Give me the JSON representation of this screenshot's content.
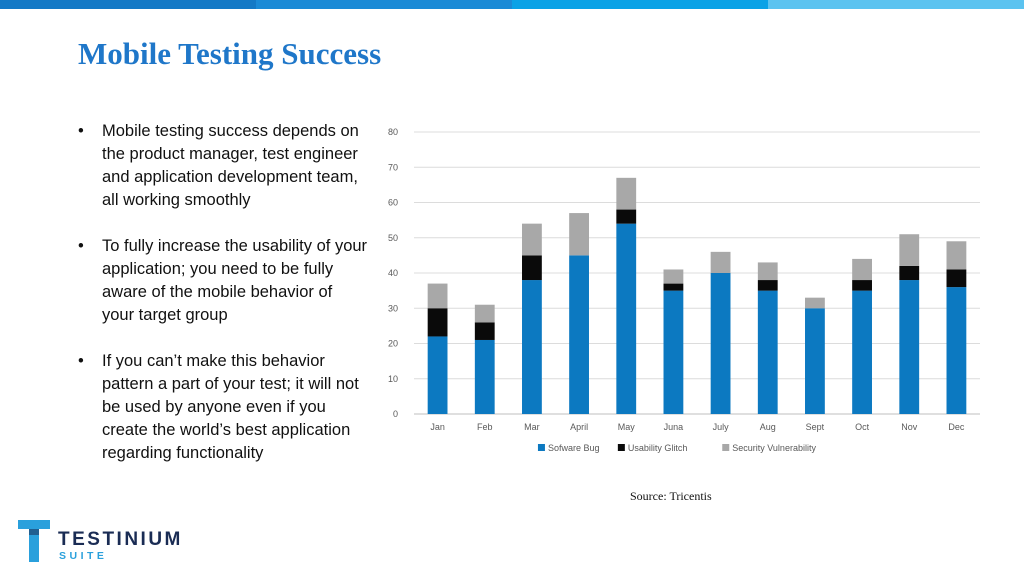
{
  "slide": {
    "title": "Mobile Testing Success",
    "bullets": [
      "Mobile testing success depends on the product manager, test engineer and application development team, all working smoothly",
      "To fully increase the usability of your application; you need to be fully aware of the mobile behavior of your target group",
      "If you can’t make this behavior pattern a part of your test; it will not be used by anyone even if you create the world’s best application regarding functionality"
    ],
    "bullet_glyph": "•",
    "source": "Source: Tricentis",
    "top_bar_colors": [
      "#1479c6",
      "#1b8ad6",
      "#0aa2e6",
      "#5bc3f0"
    ],
    "logo": {
      "word": "TESTINIUM",
      "sub": "SUITE",
      "icon": "testinium-t-logo-icon",
      "colors": {
        "primary": "#1a2c54",
        "accent": "#2aa0dc"
      }
    }
  },
  "chart_data": {
    "type": "bar",
    "stacked": true,
    "categories": [
      "Jan",
      "Feb",
      "Mar",
      "April",
      "May",
      "Juna",
      "July",
      "Aug",
      "Sept",
      "Oct",
      "Nov",
      "Dec"
    ],
    "series": [
      {
        "name": "Sofware Bug",
        "color": "#0c79c1",
        "values": [
          22,
          21,
          38,
          45,
          54,
          35,
          40,
          35,
          30,
          35,
          38,
          36
        ]
      },
      {
        "name": "Usability Glitch",
        "color": "#0a0a0a",
        "values": [
          8,
          5,
          7,
          0,
          4,
          2,
          0,
          3,
          0,
          3,
          4,
          5
        ]
      },
      {
        "name": "Security Vulnerability",
        "color": "#a8a8a8",
        "values": [
          7,
          5,
          9,
          12,
          9,
          4,
          6,
          5,
          3,
          6,
          9,
          8
        ]
      }
    ],
    "ylim": [
      0,
      80
    ],
    "yticks": [
      "0",
      "10",
      "20",
      "30",
      "40",
      "50",
      "60",
      "70",
      "80"
    ],
    "grid": true,
    "legend": "bottom",
    "xlabel": "",
    "ylabel": "",
    "title": ""
  }
}
